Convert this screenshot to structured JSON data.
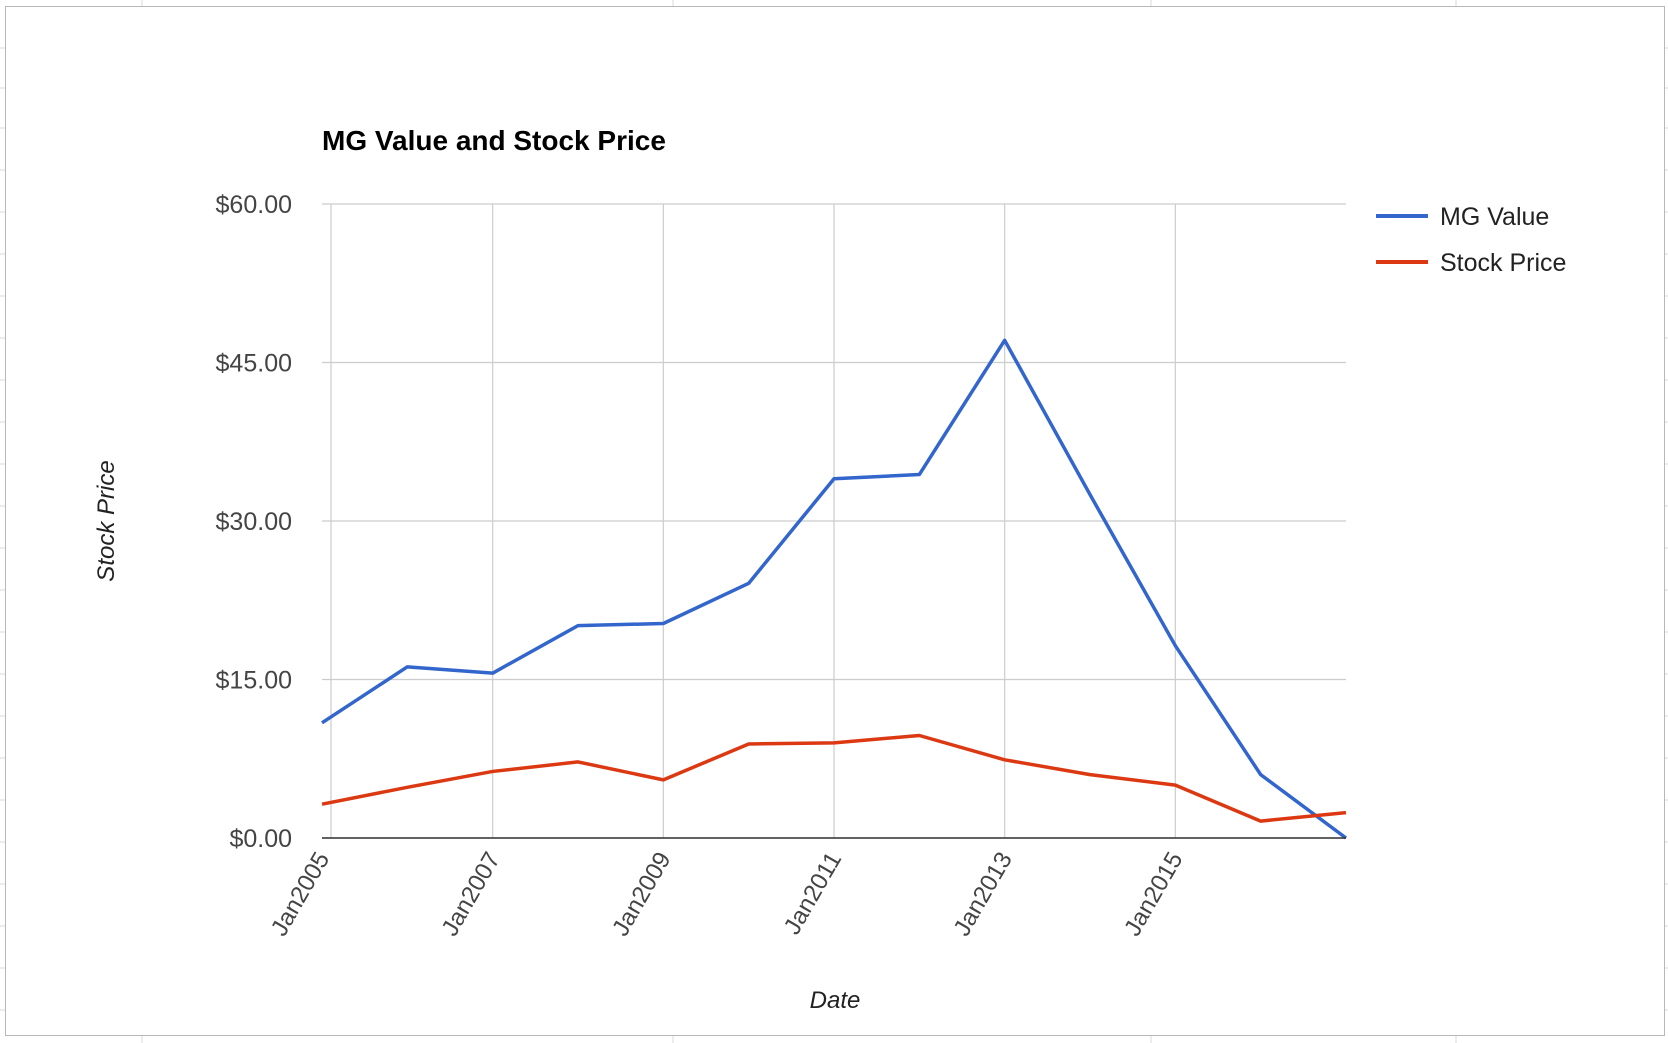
{
  "chart_data": {
    "type": "line",
    "title": "MG Value and Stock Price",
    "xlabel": "Date",
    "ylabel": "Stock Price",
    "x": [
      "Jan2005",
      "Jan2006",
      "Jan2007",
      "Jan2008",
      "Jan2009",
      "Jan2010",
      "Jan2011",
      "Jan2012",
      "Jan2013",
      "Jan2014",
      "Jan2015",
      "Jan2016",
      "Jan2017"
    ],
    "x_tick_labels": [
      "Jan2005",
      "Jan2007",
      "Jan2009",
      "Jan2011",
      "Jan2013",
      "Jan2015"
    ],
    "y_tick_labels": [
      "$0.00",
      "$15.00",
      "$30.00",
      "$45.00",
      "$60.00"
    ],
    "y_ticks": [
      0,
      15,
      30,
      45,
      60
    ],
    "ylim": [
      0,
      60
    ],
    "grid": true,
    "legend_position": "right",
    "series": [
      {
        "name": "MG Value",
        "color": "#3366cc",
        "points": [
          [
            "Jan2005",
            10.9
          ],
          [
            "Jan2006",
            16.2
          ],
          [
            "Jan2007",
            15.6
          ],
          [
            "Jan2008",
            20.1
          ],
          [
            "Jan2009",
            20.3
          ],
          [
            "Jan2010",
            24.1
          ],
          [
            "Jan2011",
            34.0
          ],
          [
            "Jan2012",
            34.4
          ],
          [
            "Jan2013",
            47.1
          ],
          [
            "Jan2014",
            32.5
          ],
          [
            "Jan2015",
            18.2
          ],
          [
            "Jan2016",
            6.0
          ],
          [
            "Jan2017",
            0.0
          ]
        ]
      },
      {
        "name": "Stock Price",
        "color": "#dc3912",
        "points": [
          [
            "Jan2005",
            3.2
          ],
          [
            "Jan2006",
            4.8
          ],
          [
            "Jan2007",
            6.3
          ],
          [
            "Jan2008",
            7.2
          ],
          [
            "Jan2009",
            5.5
          ],
          [
            "Jan2010",
            8.9
          ],
          [
            "Jan2011",
            9.0
          ],
          [
            "Jan2012",
            9.7
          ],
          [
            "Jan2013",
            7.4
          ],
          [
            "Jan2014",
            6.0
          ],
          [
            "Jan2015",
            5.0
          ],
          [
            "Jan2016",
            1.6
          ],
          [
            "Jan2017",
            2.4
          ]
        ]
      }
    ]
  }
}
